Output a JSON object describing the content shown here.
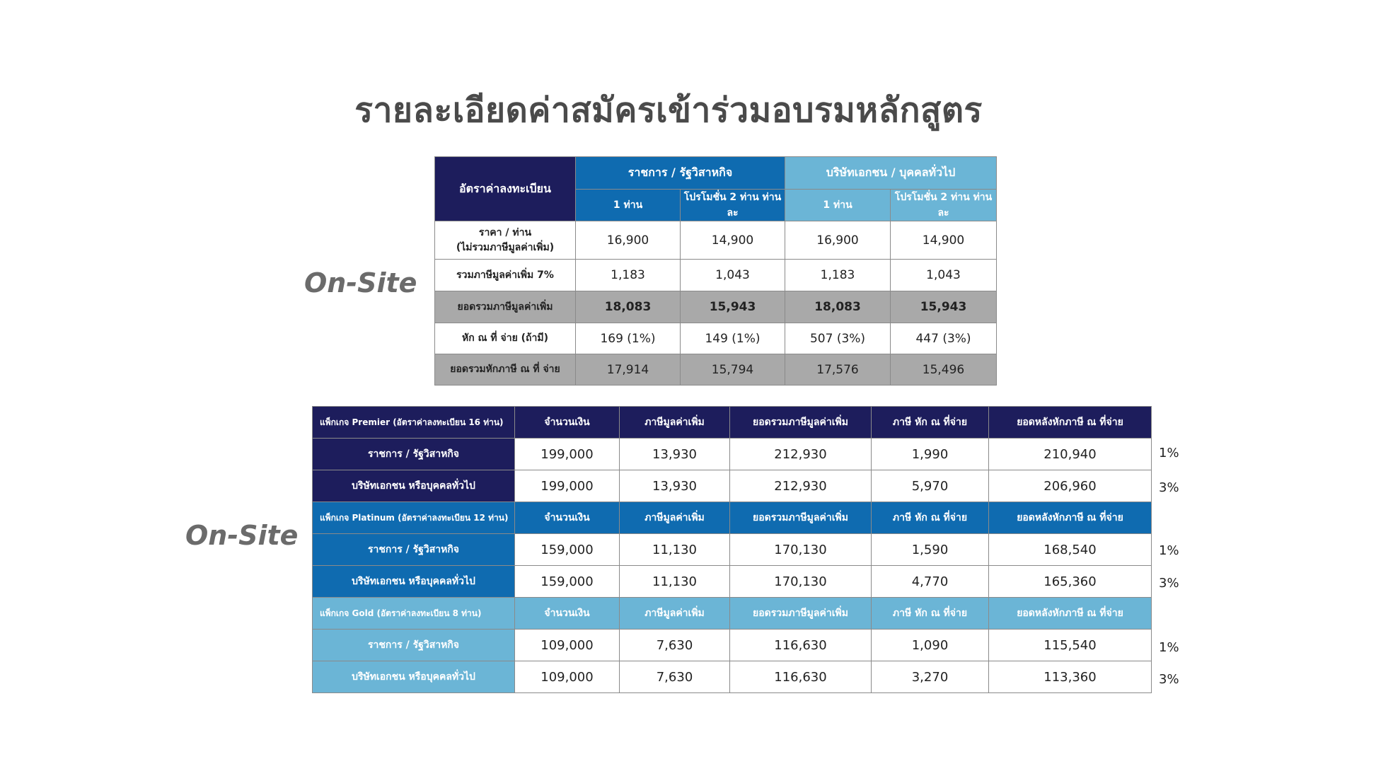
{
  "title": "รายละเอียดค่าสมัครเข้าร่วมอบรมหลักสูตร",
  "onsite_label_top": "On-Site",
  "onsite_label_bottom": "On-Site",
  "colors": {
    "navy": "#1d1d5c",
    "blue": "#0f6bb0",
    "light_blue": "#6bb5d6",
    "gray": "#a9a9a9"
  },
  "registration_table": {
    "corner_header": "อัตราค่าลงทะเบียน",
    "group_headers": [
      "ราชการ / รัฐวิสาหกิจ",
      "บริษัทเอกชน / บุคคลทั่วไป"
    ],
    "sub_headers": [
      "1 ท่าน",
      "โปรโมชั่น 2 ท่าน ท่านละ",
      "1 ท่าน",
      "โปรโมชั่น 2 ท่าน ท่านละ"
    ],
    "rows": [
      {
        "label_line1": "ราคา / ท่าน",
        "label_line2": "(ไม่รวมภาษีมูลค่าเพิ่ม)",
        "values": [
          "16,900",
          "14,900",
          "16,900",
          "14,900"
        ]
      },
      {
        "label_line1": "รวมภาษีมูลค่าเพิ่ม 7%",
        "label_line2": "",
        "values": [
          "1,183",
          "1,043",
          "1,183",
          "1,043"
        ]
      },
      {
        "label_line1": "ยอดรวมภาษีมูลค่าเพิ่ม",
        "label_line2": "",
        "values": [
          "18,083",
          "15,943",
          "18,083",
          "15,943"
        ]
      },
      {
        "label_line1": "หัก ณ ที่ จ่าย (ถ้ามี)",
        "label_line2": "",
        "values": [
          "169 (1%)",
          "149 (1%)",
          "507 (3%)",
          "447 (3%)"
        ]
      },
      {
        "label_line1": "ยอดรวมหักภาษี ณ ที่ จ่าย",
        "label_line2": "",
        "values": [
          "17,914",
          "15,794",
          "17,576",
          "15,496"
        ]
      }
    ]
  },
  "package_table": {
    "column_headers": [
      "จำนวนเงิน",
      "ภาษีมูลค่าเพิ่ม",
      "ยอดรวมภาษีมูลค่าเพิ่ม",
      "ภาษี หัก ณ ที่จ่าย",
      "ยอดหลังหักภาษี ณ ที่จ่าย"
    ],
    "packages": [
      {
        "name": "แพ็กเกจ Premier (อัตราค่าลงทะเบียน 16 ท่าน)",
        "rows": [
          {
            "label": "ราชการ / รัฐวิสาหกิจ",
            "values": [
              "199,000",
              "13,930",
              "212,930",
              "1,990",
              "210,940"
            ],
            "rate": "1%"
          },
          {
            "label": "บริษัทเอกชน หรือบุคคลทั่วไป",
            "values": [
              "199,000",
              "13,930",
              "212,930",
              "5,970",
              "206,960"
            ],
            "rate": "3%"
          }
        ]
      },
      {
        "name": "แพ็กเกจ Platinum (อัตราค่าลงทะเบียน 12 ท่าน)",
        "rows": [
          {
            "label": "ราชการ / รัฐวิสาหกิจ",
            "values": [
              "159,000",
              "11,130",
              "170,130",
              "1,590",
              "168,540"
            ],
            "rate": "1%"
          },
          {
            "label": "บริษัทเอกชน หรือบุคคลทั่วไป",
            "values": [
              "159,000",
              "11,130",
              "170,130",
              "4,770",
              "165,360"
            ],
            "rate": "3%"
          }
        ]
      },
      {
        "name": "แพ็กเกจ Gold (อัตราค่าลงทะเบียน 8 ท่าน)",
        "rows": [
          {
            "label": "ราชการ / รัฐวิสาหกิจ",
            "values": [
              "109,000",
              "7,630",
              "116,630",
              "1,090",
              "115,540"
            ],
            "rate": "1%"
          },
          {
            "label": "บริษัทเอกชน หรือบุคคลทั่วไป",
            "values": [
              "109,000",
              "7,630",
              "116,630",
              "3,270",
              "113,360"
            ],
            "rate": "3%"
          }
        ]
      }
    ]
  }
}
